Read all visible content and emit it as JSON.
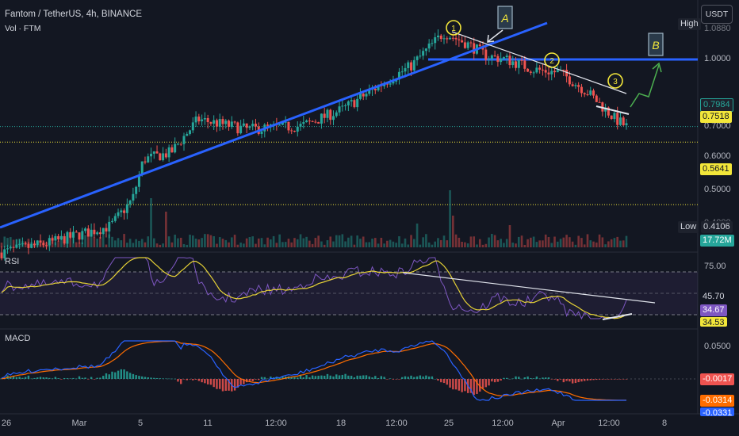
{
  "header": {
    "symbol_line": "Fantom / TetherUS, 4h, BINANCE",
    "volume_label": "Vol · FTM",
    "currency_button": "USDT"
  },
  "colors": {
    "background": "#131722",
    "up": "#26a69a",
    "down": "#ef5350",
    "trendline": "#2962ff",
    "rsi_line": "#7e57c2",
    "rsi_ma": "#e6d236",
    "macd_line": "#2962ff",
    "signal_line": "#ff6d00",
    "annotation_yellow": "#f2e63a",
    "annotation_green": "#4caf50"
  },
  "price_axis": {
    "ticks": [
      "1.0000",
      "0.7000",
      "0.6000",
      "0.5000",
      "0.4000"
    ],
    "high_label": "High",
    "high_value": "1.0880",
    "low_label": "Low",
    "low_value": "0.4106",
    "current_price": "0.7984",
    "level_1": "0.7518",
    "level_2": "0.5641",
    "volume_value": "17.72M"
  },
  "rsi_axis": {
    "title": "RSI",
    "ticks": [
      "75.00"
    ],
    "value_a": "45.70",
    "value_b": "34.67",
    "value_c": "34.53"
  },
  "macd_axis": {
    "title": "MACD",
    "ticks": [
      "0.0500"
    ],
    "value_a": "-0.0017",
    "value_b": "-0.0314",
    "value_c": "-0.0331"
  },
  "annotations": {
    "box_a": "A",
    "box_b": "B",
    "circle_1": "1",
    "circle_2": "2",
    "circle_3": "3"
  },
  "time_axis": [
    "26",
    "Mar",
    "5",
    "11",
    "12:00",
    "18",
    "12:00",
    "25",
    "12:00",
    "Apr",
    "12:00",
    "8"
  ],
  "chart_data": {
    "type": "candlestick",
    "title": "Fantom / TetherUS, 4h, BINANCE",
    "interval": "4h",
    "ylim": [
      0.38,
      1.13
    ],
    "x_ticks": [
      "26",
      "Mar",
      "5",
      "11",
      "12:00",
      "18",
      "12:00",
      "25",
      "12:00",
      "Apr",
      "12:00",
      "8"
    ],
    "price_anchors": {
      "start": 0.42,
      "early_mar": 0.5,
      "mar_5": 0.7,
      "mar_7": 0.82,
      "mar_15": 0.8,
      "mar_18": 0.85,
      "mar_21": 0.93,
      "mar_24_top": 1.08,
      "mar_26": 1.01,
      "apr_1": 0.96,
      "apr_4": 0.82,
      "last": 0.7984
    },
    "horizontal_levels": [
      1.0,
      0.7984,
      0.7518,
      0.5641
    ],
    "rsi": {
      "levels": [
        70,
        50,
        30
      ],
      "last_values": [
        45.7,
        34.67,
        34.53
      ]
    },
    "macd": {
      "last_values": [
        -0.0017,
        -0.0314,
        -0.0331
      ]
    },
    "volume_last": "17.72M"
  }
}
